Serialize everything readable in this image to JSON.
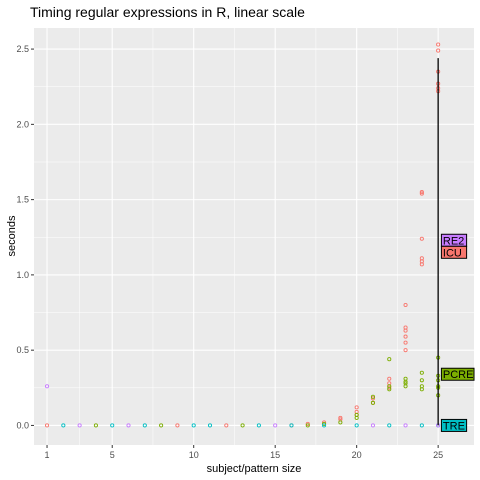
{
  "chart_data": {
    "type": "scatter",
    "title": "Timing regular expressions in R, linear scale",
    "xlabel": "subject/pattern size",
    "ylabel": "seconds",
    "xlim": [
      0.2,
      27.2
    ],
    "ylim": [
      -0.13,
      2.64
    ],
    "x_ticks": [
      1,
      5,
      10,
      15,
      20,
      25
    ],
    "y_ticks": [
      0.0,
      0.5,
      1.0,
      1.5,
      2.0,
      2.5
    ],
    "x_tick_labels": [
      "1",
      "5",
      "10",
      "15",
      "20",
      "25"
    ],
    "y_tick_labels": [
      "0.0",
      "0.5",
      "1.0",
      "1.5",
      "2.0",
      "2.5"
    ],
    "grid": true,
    "legend": "none",
    "colors": {
      "ICU": "#F8766D",
      "PCRE": "#7CAE00",
      "TRE": "#00BFC4",
      "RE2": "#C77CFF",
      "panel_bg": "#EBEBEB",
      "grid": "#FFFFFF"
    },
    "series": [
      {
        "name": "ICU",
        "color": "#F8766D",
        "points": [
          [
            1,
            0.0
          ],
          [
            9,
            0.0
          ],
          [
            12,
            0.0
          ],
          [
            16,
            0.0
          ],
          [
            17,
            0.01
          ],
          [
            18,
            0.02
          ],
          [
            19,
            0.04
          ],
          [
            19,
            0.05
          ],
          [
            20,
            0.07
          ],
          [
            20,
            0.09
          ],
          [
            20,
            0.12
          ],
          [
            21,
            0.15
          ],
          [
            21,
            0.18
          ],
          [
            22,
            0.25
          ],
          [
            22,
            0.28
          ],
          [
            22,
            0.31
          ],
          [
            23,
            0.5
          ],
          [
            23,
            0.55
          ],
          [
            23,
            0.59
          ],
          [
            23,
            0.63
          ],
          [
            23,
            0.65
          ],
          [
            23,
            0.8
          ],
          [
            24,
            1.07
          ],
          [
            24,
            1.09
          ],
          [
            24,
            1.11
          ],
          [
            24,
            1.24
          ],
          [
            24,
            1.54
          ],
          [
            24,
            1.55
          ],
          [
            25,
            2.22
          ],
          [
            25,
            2.24
          ],
          [
            25,
            2.27
          ],
          [
            25,
            2.35
          ],
          [
            25,
            2.49
          ],
          [
            25,
            2.53
          ]
        ]
      },
      {
        "name": "PCRE",
        "color": "#7CAE00",
        "points": [
          [
            4,
            0.0
          ],
          [
            8,
            0.0
          ],
          [
            13,
            0.0
          ],
          [
            17,
            0.0
          ],
          [
            18,
            0.01
          ],
          [
            19,
            0.02
          ],
          [
            20,
            0.05
          ],
          [
            20,
            0.07
          ],
          [
            21,
            0.15
          ],
          [
            21,
            0.19
          ],
          [
            22,
            0.24
          ],
          [
            22,
            0.26
          ],
          [
            22,
            0.44
          ],
          [
            23,
            0.26
          ],
          [
            23,
            0.28
          ],
          [
            23,
            0.29
          ],
          [
            23,
            0.31
          ],
          [
            24,
            0.24
          ],
          [
            24,
            0.26
          ],
          [
            24,
            0.3
          ],
          [
            24,
            0.35
          ],
          [
            25,
            0.2
          ],
          [
            25,
            0.25
          ],
          [
            25,
            0.26
          ],
          [
            25,
            0.3
          ],
          [
            25,
            0.33
          ],
          [
            25,
            0.45
          ]
        ]
      },
      {
        "name": "TRE",
        "color": "#00BFC4",
        "points": [
          [
            2,
            0.0
          ],
          [
            5,
            0.0
          ],
          [
            7,
            0.0
          ],
          [
            10,
            0.0
          ],
          [
            11,
            0.0
          ],
          [
            14,
            0.0
          ],
          [
            16,
            0.0
          ],
          [
            18,
            0.0
          ],
          [
            20,
            0.0
          ],
          [
            22,
            0.0
          ],
          [
            24,
            0.0
          ],
          [
            25,
            0.0
          ]
        ]
      },
      {
        "name": "RE2",
        "color": "#C77CFF",
        "points": [
          [
            1,
            0.26
          ],
          [
            3,
            0.0
          ],
          [
            6,
            0.0
          ],
          [
            15,
            0.0
          ],
          [
            21,
            0.0
          ],
          [
            23,
            0.0
          ],
          [
            25,
            0.0
          ]
        ]
      }
    ],
    "direct_labels": [
      {
        "text": "RE2",
        "x": 25.2,
        "y": 1.23,
        "fill": "#C77CFF"
      },
      {
        "text": "ICU",
        "x": 25.2,
        "y": 1.15,
        "fill": "#F8766D"
      },
      {
        "text": "PCRE",
        "x": 25.2,
        "y": 0.34,
        "fill": "#7CAE00"
      },
      {
        "text": "TRE",
        "x": 25.2,
        "y": 0.0,
        "fill": "#00BFC4"
      }
    ],
    "label_bar": {
      "x": 25,
      "y0": 0.0,
      "y1": 2.44
    }
  }
}
